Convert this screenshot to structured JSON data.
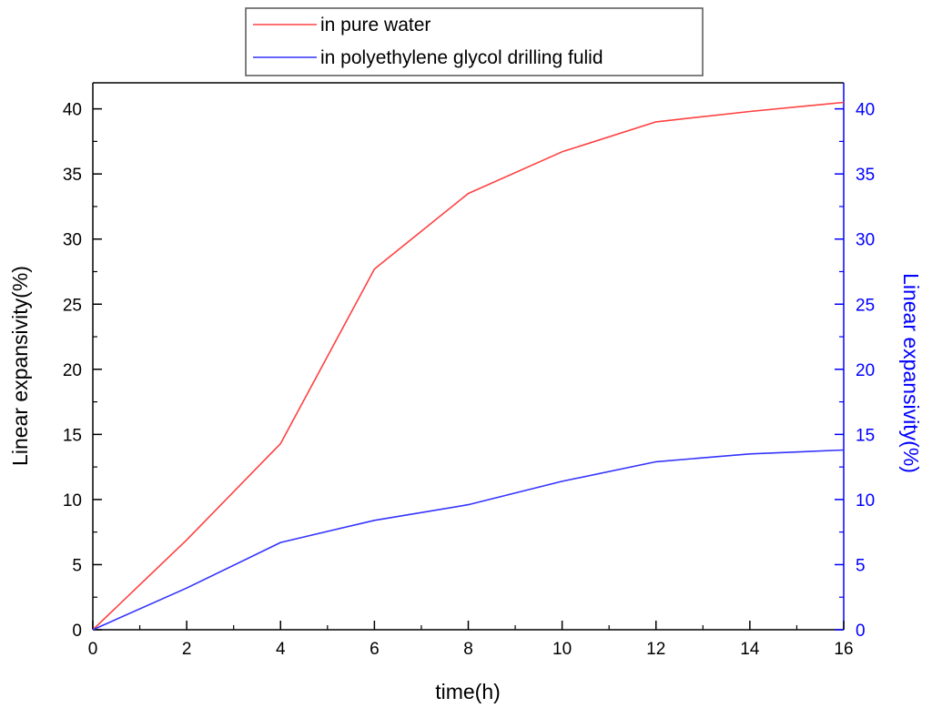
{
  "chart_data": {
    "type": "line",
    "xlabel": "time(h)",
    "ylabel_left": "Linear expansivity(%)",
    "ylabel_right": "Linear expansivity(%)",
    "xlim": [
      0,
      16
    ],
    "ylim": [
      0,
      42
    ],
    "x_ticks": [
      0,
      2,
      4,
      6,
      8,
      10,
      12,
      14,
      16
    ],
    "y_ticks": [
      0,
      5,
      10,
      15,
      20,
      25,
      30,
      35,
      40
    ],
    "grid": false,
    "legend_position": "top-center",
    "axis_color_left": "#000000",
    "axis_color_right": "#0000ff",
    "series": [
      {
        "name": "in pure water",
        "color": "#ff4040",
        "x": [
          0,
          2,
          4,
          6,
          8,
          10,
          12,
          14,
          16
        ],
        "values": [
          0,
          6.9,
          14.3,
          27.7,
          33.5,
          36.7,
          39.0,
          39.8,
          40.5
        ]
      },
      {
        "name": "in polyethylene glycol drilling fulid",
        "color": "#3333ff",
        "x": [
          0,
          2,
          4,
          6,
          8,
          10,
          12,
          14,
          16
        ],
        "values": [
          0,
          3.2,
          6.7,
          8.4,
          9.6,
          11.4,
          12.9,
          13.5,
          13.8
        ]
      }
    ]
  }
}
